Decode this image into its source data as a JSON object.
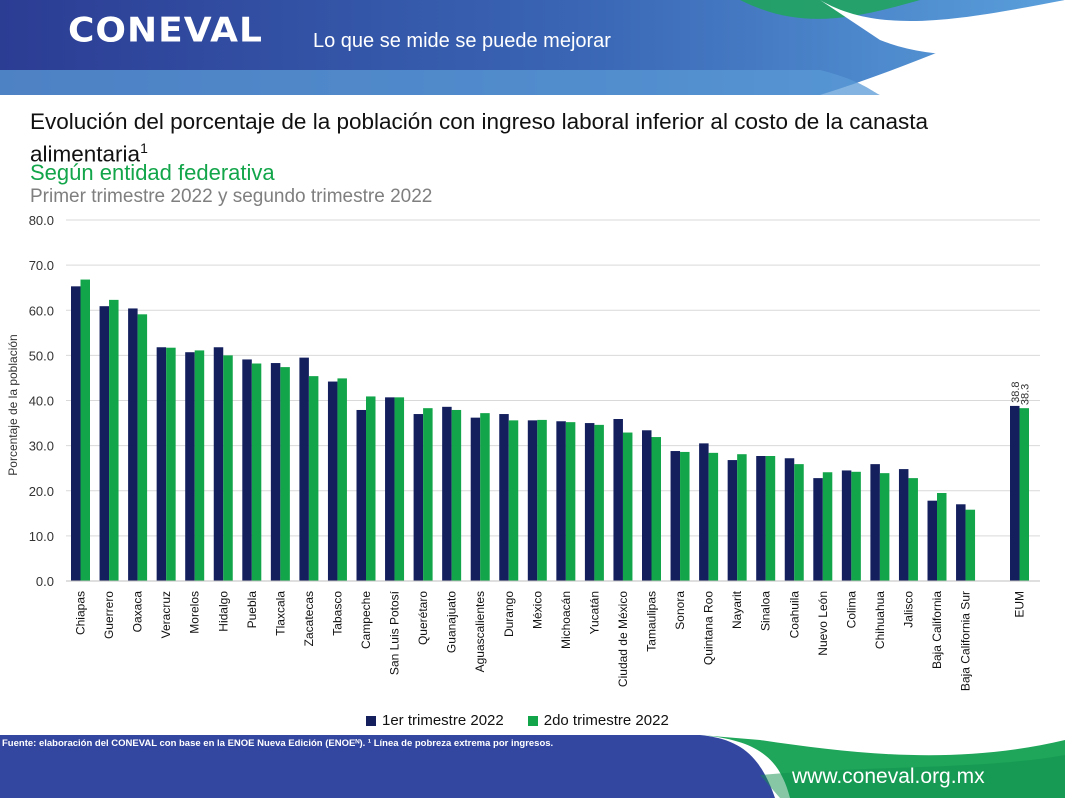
{
  "header": {
    "logo": "CONEVAL",
    "tagline": "Lo que se mide se puede mejorar"
  },
  "title": "Evolución del porcentaje de la población con ingreso laboral inferior al costo de la canasta alimentaria",
  "title_sup": "1",
  "subtitle": "Según entidad federativa",
  "period": "Primer trimestre 2022 y segundo trimestre 2022",
  "footer": {
    "source": "Fuente: elaboración del CONEVAL con base en la ENOE Nueva Edición (ENOEᴺ). ¹ Línea de pobreza extrema por ingresos.",
    "url": "www.coneval.org.mx"
  },
  "colors": {
    "series1": "#14205e",
    "series2": "#13a54a",
    "header_dark": "#2e3f95",
    "header_light": "#4f8fd0",
    "footer_green": "#1fa65a"
  },
  "chart_data": {
    "type": "bar",
    "ylabel": "Porcentaje de la población",
    "ylim": [
      0,
      80
    ],
    "yticks": [
      "0.0",
      "10.0",
      "20.0",
      "30.0",
      "40.0",
      "50.0",
      "60.0",
      "70.0",
      "80.0"
    ],
    "categories": [
      "Chiapas",
      "Guerrero",
      "Oaxaca",
      "Veracruz",
      "Morelos",
      "Hidalgo",
      "Puebla",
      "Tlaxcala",
      "Zacatecas",
      "Tabasco",
      "Campeche",
      "San Luis Potosí",
      "Querétaro",
      "Guanajuato",
      "Aguascalientes",
      "Durango",
      "México",
      "Michoacán",
      "Yucatán",
      "Ciudad de México",
      "Tamaulipas",
      "Sonora",
      "Quintana Roo",
      "Nayarit",
      "Sinaloa",
      "Coahuila",
      "Nuevo León",
      "Colima",
      "Chihuahua",
      "Jalisco",
      "Baja California",
      "Baja California Sur",
      "EUM"
    ],
    "series": [
      {
        "name": "1er trimestre 2022",
        "values": [
          65.3,
          60.9,
          60.4,
          51.8,
          50.7,
          51.8,
          49.1,
          48.3,
          49.5,
          44.2,
          37.9,
          40.7,
          37.0,
          38.6,
          36.2,
          37.0,
          35.6,
          35.4,
          35.0,
          35.9,
          33.4,
          28.8,
          30.5,
          26.8,
          27.7,
          27.2,
          22.8,
          24.5,
          25.9,
          24.8,
          17.8,
          17.0,
          38.8
        ]
      },
      {
        "name": "2do trimestre 2022",
        "values": [
          66.8,
          62.3,
          59.1,
          51.7,
          51.1,
          50.0,
          48.2,
          47.4,
          45.4,
          44.9,
          40.9,
          40.7,
          38.3,
          37.9,
          37.2,
          35.6,
          35.7,
          35.2,
          34.6,
          32.9,
          31.9,
          28.6,
          28.4,
          28.1,
          27.7,
          25.9,
          24.1,
          24.2,
          23.9,
          22.8,
          19.5,
          15.8,
          38.3
        ]
      }
    ],
    "data_labels": {
      "EUM": [
        "38.8",
        "38.3"
      ]
    },
    "legend": "bottom"
  }
}
